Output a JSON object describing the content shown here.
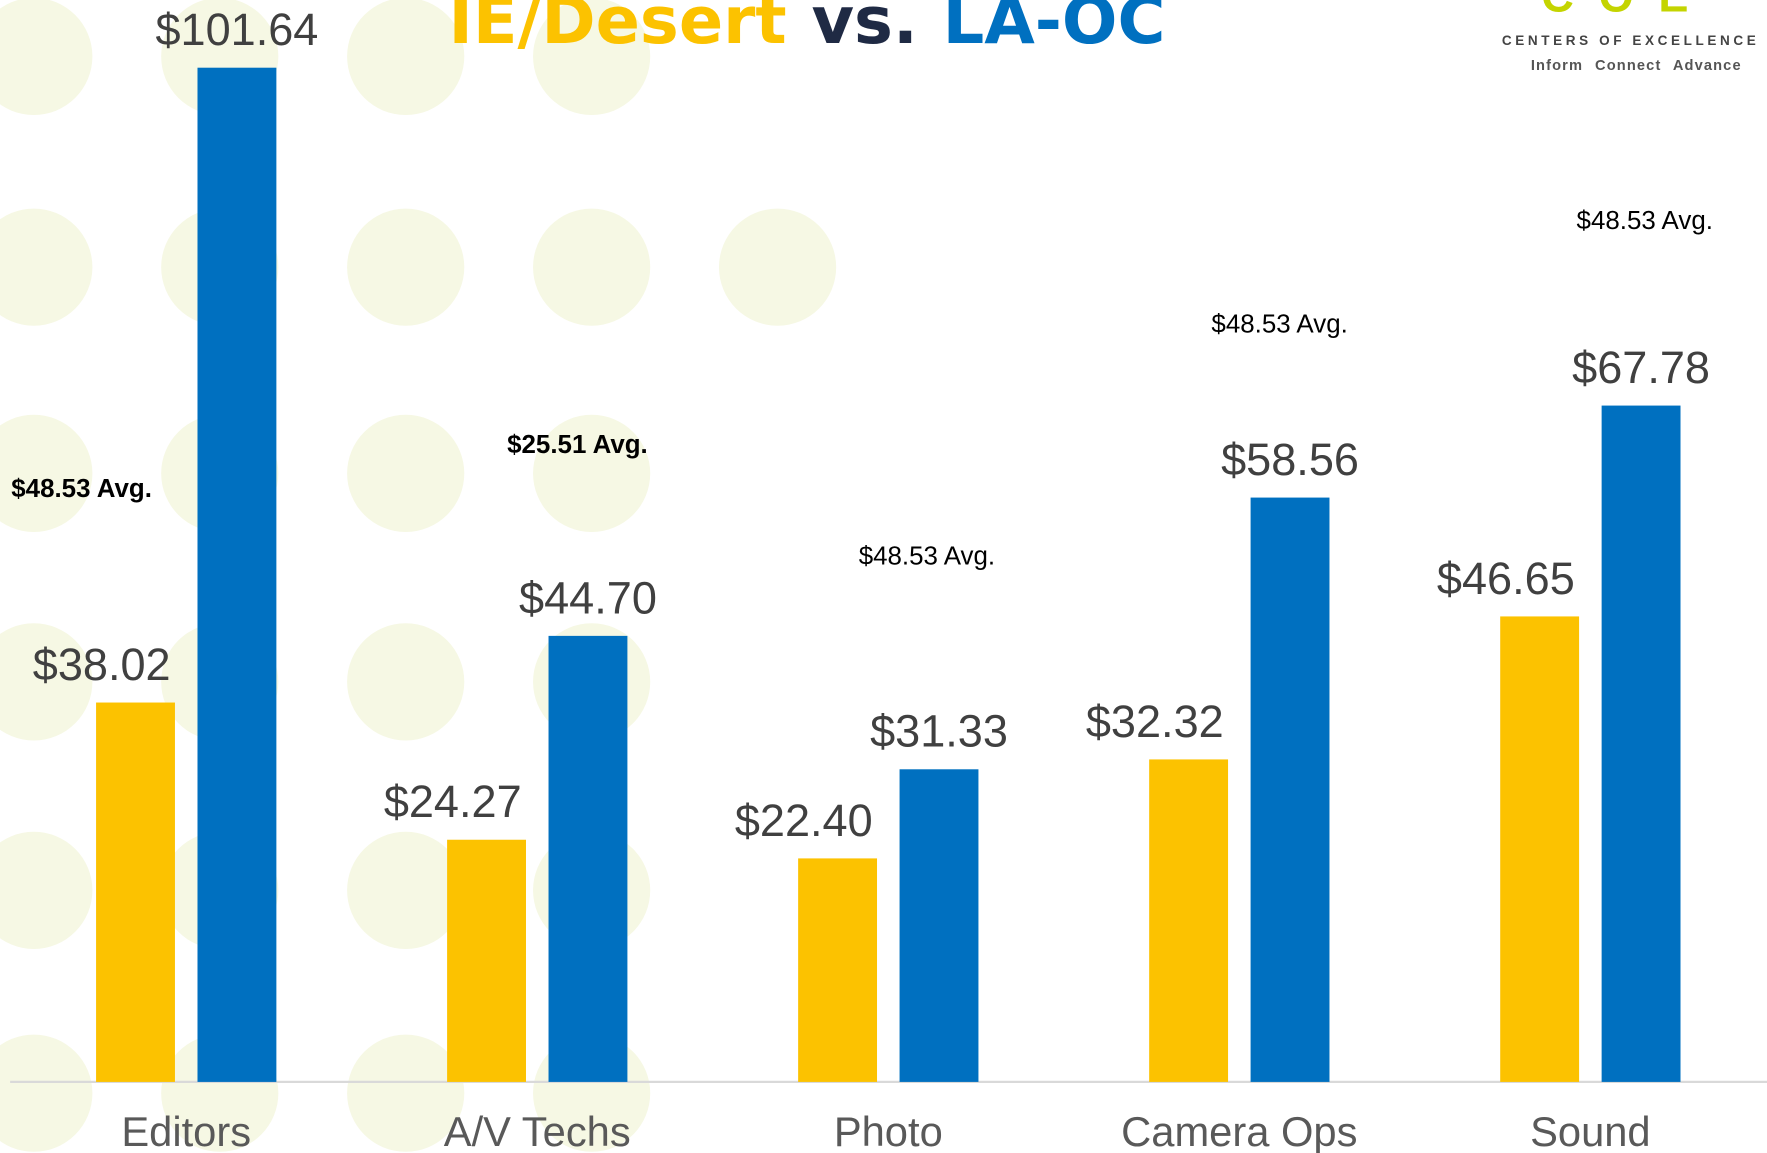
{
  "chart_data": {
    "type": "bar",
    "title_connector": "vs.",
    "categories": [
      "Editors",
      "A/V Techs",
      "Photo",
      "Camera Ops",
      "Sound"
    ],
    "series": [
      {
        "name": "IE/Desert",
        "color": "#fcc200",
        "values": [
          38.02,
          24.27,
          22.4,
          32.32,
          46.65
        ],
        "value_labels": [
          "$38.02",
          "$24.27",
          "$22.40",
          "$32.32",
          "$46.65"
        ]
      },
      {
        "name": "LA-OC",
        "color": "#0070c0",
        "values": [
          101.64,
          44.7,
          31.33,
          58.56,
          67.78
        ],
        "value_labels": [
          "$101.64",
          "$44.70",
          "$31.33",
          "$58.56",
          "$67.78"
        ]
      }
    ],
    "annotations": [
      "$48.53 Avg.",
      "$25.51 Avg.",
      "$48.53 Avg.",
      "$48.53 Avg.",
      "$48.53 Avg."
    ],
    "logo": {
      "mark": "COE",
      "name": "CENTERS OF EXCELLENCE",
      "tagline": "Inform Connect Advance"
    }
  }
}
